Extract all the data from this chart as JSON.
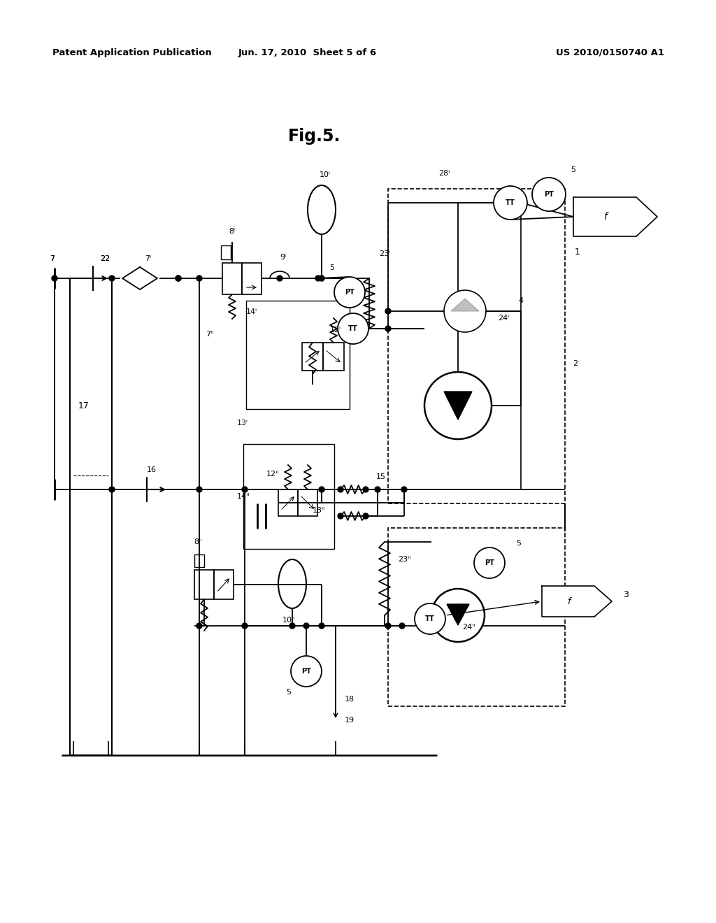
{
  "bg_color": "#ffffff",
  "line_color": "#000000",
  "header_left": "Patent Application Publication",
  "header_center": "Jun. 17, 2010  Sheet 5 of 6",
  "header_right": "US 2010/0150740 A1",
  "fig_title": "Fig.5."
}
